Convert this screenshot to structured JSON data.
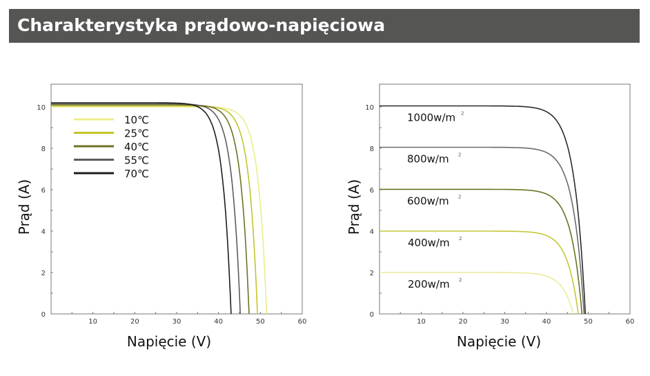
{
  "header": {
    "title": "Charakterystyka prądowo-napięciowa"
  },
  "chart_data": [
    {
      "type": "line",
      "title": "",
      "xlabel": "Napięcie (V)",
      "ylabel": "Prąd (A)",
      "xlim": [
        0,
        60
      ],
      "ylim": [
        0,
        11.1
      ],
      "xticks": [
        "10",
        "20",
        "30",
        "40",
        "50",
        "60"
      ],
      "yticks": [
        "0",
        "2",
        "4",
        "6",
        "8",
        "10"
      ],
      "legend": "top-left",
      "curve_model": "I = Isc * (1 - exp((V - Voc)/k))",
      "series": [
        {
          "name": "10℃",
          "isc": 10.0,
          "voc": 51.5,
          "k": 2.0,
          "color": "#ecec8c"
        },
        {
          "name": "25℃",
          "isc": 10.05,
          "voc": 49.3,
          "k": 2.0,
          "color": "#c4c42c"
        },
        {
          "name": "40℃",
          "isc": 10.1,
          "voc": 47.3,
          "k": 2.0,
          "color": "#6e7222"
        },
        {
          "name": "55℃",
          "isc": 10.15,
          "voc": 45.2,
          "k": 2.0,
          "color": "#5c5c5c"
        },
        {
          "name": "70℃",
          "isc": 10.2,
          "voc": 43.0,
          "k": 2.0,
          "color": "#1c1c1c"
        }
      ]
    },
    {
      "type": "line",
      "title": "",
      "xlabel": "Napięcie (V)",
      "ylabel": "Prąd (A)",
      "xlim": [
        0,
        60
      ],
      "ylim": [
        0,
        11.1
      ],
      "xticks": [
        "10",
        "20",
        "30",
        "40",
        "50",
        "60"
      ],
      "yticks": [
        "0",
        "2",
        "4",
        "6",
        "8",
        "10"
      ],
      "legend": "inline",
      "curve_model": "I = Isc * (1 - exp((V - Voc)/k))",
      "series": [
        {
          "name": "1000w/m",
          "sup": "2",
          "isc": 10.05,
          "voc": 49.3,
          "k": 2.6,
          "color": "#2a2a2a"
        },
        {
          "name": "800w/m",
          "sup": "2",
          "isc": 8.05,
          "voc": 49.0,
          "k": 2.6,
          "color": "#6a6a6a"
        },
        {
          "name": "600w/m",
          "sup": "2",
          "isc": 6.02,
          "voc": 48.5,
          "k": 2.6,
          "color": "#6b7020"
        },
        {
          "name": "400w/m",
          "sup": "2",
          "isc": 4.0,
          "voc": 47.6,
          "k": 2.6,
          "color": "#c6c63a"
        },
        {
          "name": "200w/m",
          "sup": "2",
          "isc": 2.0,
          "voc": 46.4,
          "k": 2.6,
          "color": "#ecec9c"
        }
      ]
    }
  ]
}
